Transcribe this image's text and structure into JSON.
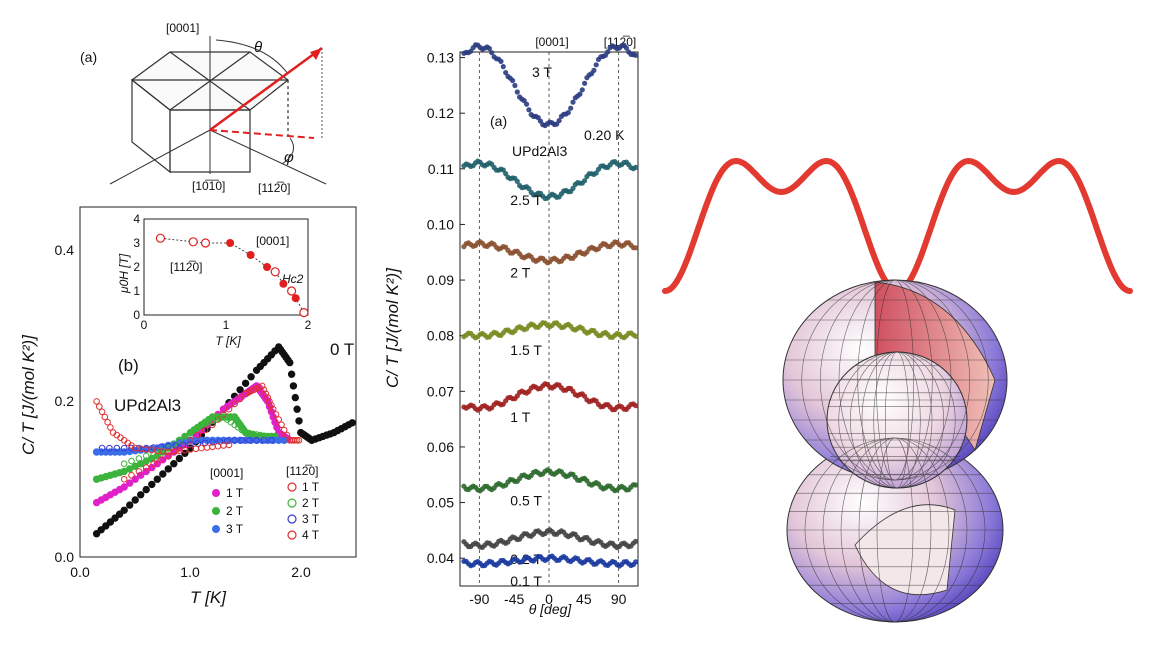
{
  "crystal": {
    "label": "(a)",
    "dir_top": "[0001]",
    "dir_bottom": "[10̅1̅0]",
    "dir_right": "[112̅0]",
    "theta": "θ",
    "phi": "φ"
  },
  "chart_data": [
    {
      "type": "scatter",
      "panel": "(b)",
      "material": "UPd2Al3",
      "xlabel": "T [K]",
      "ylabel": "C/ T [J/(mol K²)]",
      "xlim": [
        0,
        2.5
      ],
      "ylim": [
        0,
        0.45
      ],
      "xticks": [
        "0.0",
        "1.0",
        "2.0"
      ],
      "yticks": [
        "0.0",
        "0.2",
        "0.4"
      ],
      "annotation": "0 T",
      "legend_left_title": "[0001]",
      "legend_right_title": "[112̅0]",
      "series": [
        {
          "name": "0 T",
          "color": "#111111",
          "marker": "filled",
          "x": [
            0.15,
            0.4,
            0.7,
            1.0,
            1.3,
            1.6,
            1.8,
            1.9,
            2.0,
            2.1,
            2.3,
            2.5
          ],
          "y": [
            0.03,
            0.06,
            0.1,
            0.14,
            0.19,
            0.24,
            0.27,
            0.25,
            0.16,
            0.15,
            0.16,
            0.175
          ]
        },
        {
          "name": "1 T",
          "group": "[0001]",
          "color": "#e020c8",
          "marker": "filled",
          "x": [
            0.15,
            0.4,
            0.7,
            1.0,
            1.3,
            1.5,
            1.6,
            1.7,
            1.8,
            1.9
          ],
          "y": [
            0.07,
            0.09,
            0.12,
            0.15,
            0.19,
            0.21,
            0.22,
            0.2,
            0.16,
            0.15
          ]
        },
        {
          "name": "2 T",
          "group": "[0001]",
          "color": "#3cb33c",
          "marker": "filled",
          "x": [
            0.15,
            0.4,
            0.7,
            1.0,
            1.2,
            1.4,
            1.5,
            1.6,
            1.8
          ],
          "y": [
            0.1,
            0.11,
            0.13,
            0.16,
            0.18,
            0.18,
            0.16,
            0.155,
            0.155
          ]
        },
        {
          "name": "3 T",
          "group": "[0001]",
          "color": "#3a6ee8",
          "marker": "filled",
          "x": [
            0.15,
            0.4,
            0.7,
            1.0,
            1.3,
            1.6,
            1.9
          ],
          "y": [
            0.135,
            0.135,
            0.14,
            0.15,
            0.15,
            0.15,
            0.15
          ]
        },
        {
          "name": "1 T",
          "group": "[112̅0]",
          "color": "#e03030",
          "marker": "open",
          "x": [
            0.4,
            0.8,
            1.2,
            1.5,
            1.65,
            1.75,
            1.9,
            2.0
          ],
          "y": [
            0.1,
            0.13,
            0.17,
            0.21,
            0.22,
            0.19,
            0.15,
            0.15
          ]
        },
        {
          "name": "2 T",
          "group": "[112̅0]",
          "color": "#3cb33c",
          "marker": "open",
          "x": [
            0.4,
            0.8,
            1.1,
            1.3,
            1.5,
            1.7
          ],
          "y": [
            0.12,
            0.14,
            0.17,
            0.18,
            0.16,
            0.155
          ]
        },
        {
          "name": "3 T",
          "group": "[112̅0]",
          "color": "#3a3ad8",
          "marker": "open",
          "x": [
            0.2,
            0.6,
            1.0,
            1.4,
            1.8
          ],
          "y": [
            0.14,
            0.14,
            0.145,
            0.15,
            0.15
          ]
        },
        {
          "name": "4 T",
          "group": "[112̅0]",
          "color": "#e03030",
          "marker": "open",
          "x": [
            0.15,
            0.3,
            0.5,
            0.8,
            1.1,
            1.4
          ],
          "y": [
            0.2,
            0.16,
            0.14,
            0.135,
            0.14,
            0.145
          ]
        }
      ],
      "inset": {
        "ylabel": "μ0H [T]",
        "xlabel": "T [K]",
        "xlim": [
          0,
          2
        ],
        "ylim": [
          0,
          4
        ],
        "xticks": [
          "0",
          "1",
          "2"
        ],
        "yticks": [
          "0",
          "1",
          "2",
          "3",
          "4"
        ],
        "label_0001": "[0001]",
        "label_1120": "[112̅0]",
        "label_hc2": "Hc2",
        "filled": {
          "x": [
            1.05,
            1.3,
            1.5,
            1.7,
            1.85
          ],
          "y": [
            3.0,
            2.5,
            2.0,
            1.3,
            0.7
          ]
        },
        "open": {
          "x": [
            0.2,
            0.6,
            0.75,
            1.6,
            1.8,
            1.95
          ],
          "y": [
            3.2,
            3.05,
            3.0,
            1.8,
            1.0,
            0.1
          ]
        }
      }
    },
    {
      "type": "scatter",
      "panel": "(a)",
      "material": "UPd2Al3",
      "temperature": "0.20 K",
      "xlabel": "θ [deg]",
      "ylabel": "C/ T [J/(mol K²)]",
      "xlim": [
        -115,
        115
      ],
      "ylim": [
        0.035,
        0.131
      ],
      "xticks": [
        "-90",
        "-45",
        "0",
        "45",
        "90"
      ],
      "yticks": [
        "0.04",
        "0.05",
        "0.06",
        "0.07",
        "0.08",
        "0.09",
        "0.10",
        "0.11",
        "0.12",
        "0.13"
      ],
      "top_labels": [
        "[0001]",
        "[112̅0]"
      ],
      "series": [
        {
          "name": "3 T",
          "color": "#2a3c80",
          "base": 0.125,
          "amp": -0.007
        },
        {
          "name": "2.5 T",
          "color": "#20606a",
          "base": 0.108,
          "amp": -0.003
        },
        {
          "name": "2 T",
          "color": "#8a5030",
          "base": 0.095,
          "amp": -0.0015
        },
        {
          "name": "1.5 T",
          "color": "#7a8a20",
          "base": 0.081,
          "amp": 0.001
        },
        {
          "name": "1 T",
          "color": "#a02020",
          "base": 0.069,
          "amp": 0.002
        },
        {
          "name": "0.5 T",
          "color": "#2e6a2e",
          "base": 0.054,
          "amp": 0.0015
        },
        {
          "name": "0.2 T",
          "color": "#444444",
          "base": 0.0435,
          "amp": 0.0012
        },
        {
          "name": "0.1 T",
          "color": "#1a3aa0",
          "base": 0.0395,
          "amp": 0.0005
        }
      ]
    }
  ],
  "gap_illustration": {
    "curve_color": "#e23a30"
  }
}
